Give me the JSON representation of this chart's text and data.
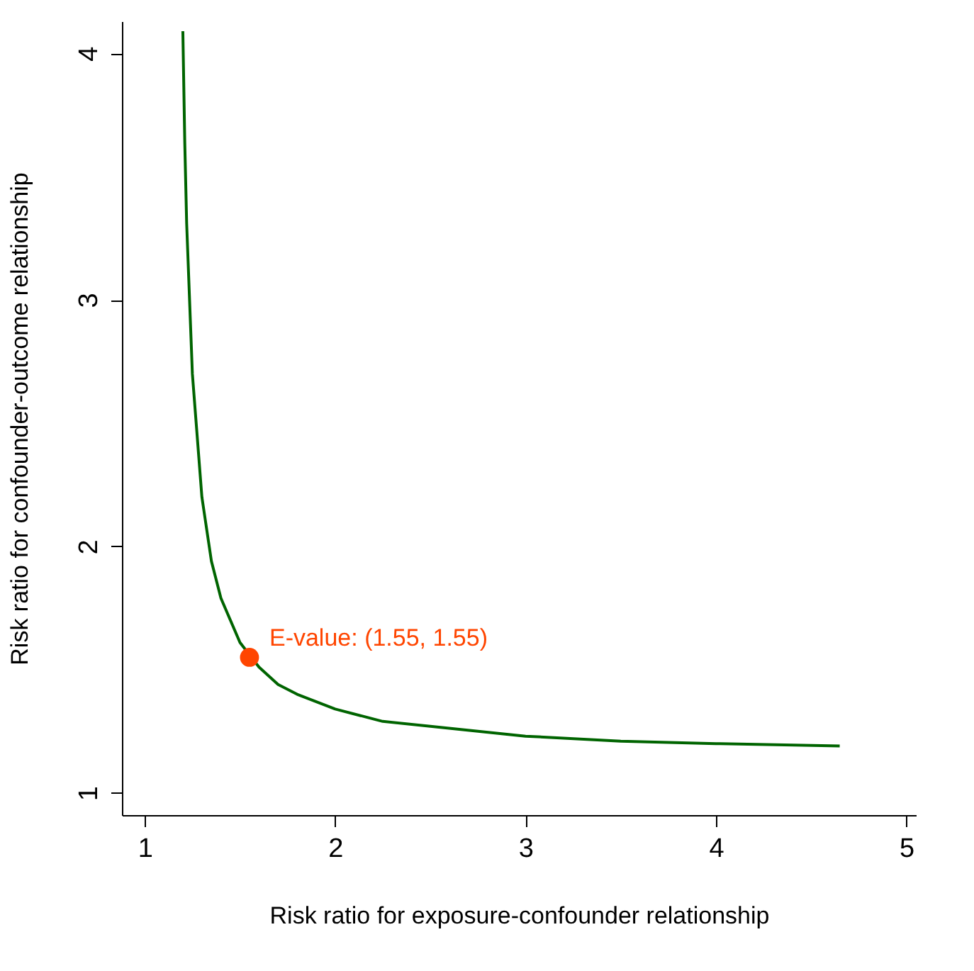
{
  "chart_data": {
    "type": "line",
    "xlabel": "Risk ratio for exposure-confounder relationship",
    "ylabel": "Risk ratio for confounder-outcome relationship",
    "xlim": [
      0.88,
      5.05
    ],
    "ylim": [
      0.91,
      4.13
    ],
    "xticks": [
      1,
      2,
      3,
      4,
      5
    ],
    "yticks": [
      1,
      2,
      3,
      4
    ],
    "grid": false,
    "series": [
      {
        "color": "#006400",
        "marker": "none",
        "line_style": "solid",
        "x": [
          1.2,
          1.21,
          1.22,
          1.25,
          1.3,
          1.35,
          1.4,
          1.5,
          1.6,
          1.7,
          1.8,
          2.0,
          2.25,
          2.5,
          3.0,
          3.5,
          4.0,
          4.65
        ],
        "values": [
          4.09,
          3.64,
          3.31,
          2.7,
          2.2,
          1.94,
          1.79,
          1.61,
          1.51,
          1.44,
          1.4,
          1.34,
          1.29,
          1.27,
          1.23,
          1.21,
          1.2,
          1.19
        ]
      },
      {
        "type": "scatter",
        "color": "#ff4500",
        "marker": "circle",
        "x": [
          1.55
        ],
        "values": [
          1.55
        ]
      }
    ],
    "annotations": [
      {
        "text": "E-value: (1.55, 1.55)",
        "x": 1.55,
        "y": 1.55
      }
    ]
  }
}
